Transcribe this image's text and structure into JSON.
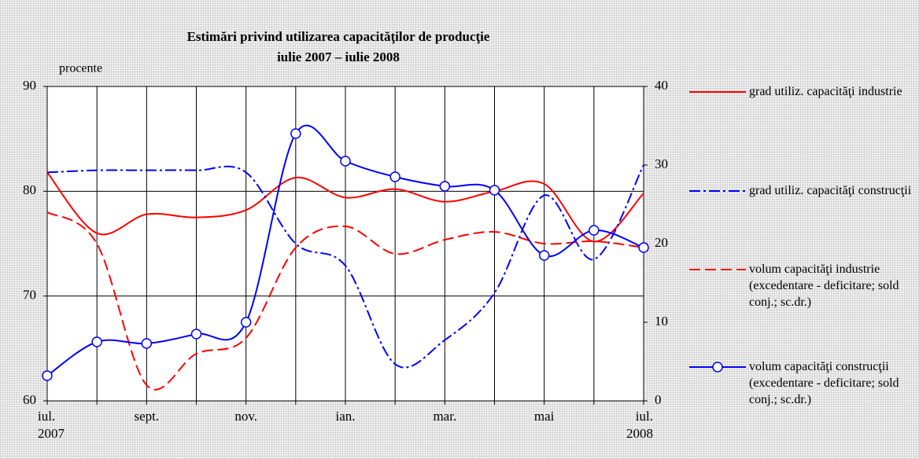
{
  "chart_data": {
    "type": "line",
    "title": "Estimări privind utilizarea capacităţilor de producţie",
    "subtitle": "iulie 2007 – iulie 2008",
    "y_label": "procente",
    "categories": [
      "iul.\n2007",
      null,
      "sept.",
      null,
      "nov.",
      null,
      "ian.",
      null,
      "mar.",
      null,
      "mai",
      null,
      "iul.\n2008"
    ],
    "ylim": [
      60,
      90
    ],
    "yticks": [
      60,
      70,
      80,
      90
    ],
    "y2lim": [
      0,
      40
    ],
    "y2ticks": [
      0,
      10,
      20,
      30,
      40
    ],
    "grid": true,
    "legend": "right",
    "series": [
      {
        "name": "grad utiliz. capacităţi industrie",
        "color": "#ff0000",
        "line_style": "solid",
        "values": [
          81.8,
          76,
          77.8,
          77.5,
          78.2,
          81.3,
          79.4,
          80.2,
          79.0,
          80.0,
          80.7,
          75.2,
          79.8
        ]
      },
      {
        "name": "grad utiliz. capacităţi construcţii",
        "color": "#0000ff",
        "line_style": "dashdot",
        "values": [
          81.8,
          82,
          82,
          82,
          81.8,
          75,
          72.9,
          63.5,
          65.8,
          70.3,
          79.6,
          73.5,
          82.5
        ]
      },
      {
        "name": "volum capacităţi industrie (excedentare - deficitare; sold conj.; sc.dr.)",
        "color": "#ff0000",
        "line_style": "dashed",
        "axis": "y2",
        "values": [
          24,
          20,
          2,
          6,
          8,
          19.5,
          22.2,
          18.7,
          20.5,
          21.5,
          20,
          20.3,
          19.5
        ]
      },
      {
        "name": "volum capacităţi construcţii (excedentare - deficitare; sold conj.; sc.dr.)",
        "color": "#0000ff",
        "line_style": "solid",
        "marker": "circle",
        "axis": "y2",
        "values": [
          3.2,
          7.5,
          7.3,
          8.5,
          10,
          34,
          30.5,
          28.5,
          27.3,
          26.8,
          18.5,
          21.7,
          19.5
        ]
      }
    ]
  }
}
